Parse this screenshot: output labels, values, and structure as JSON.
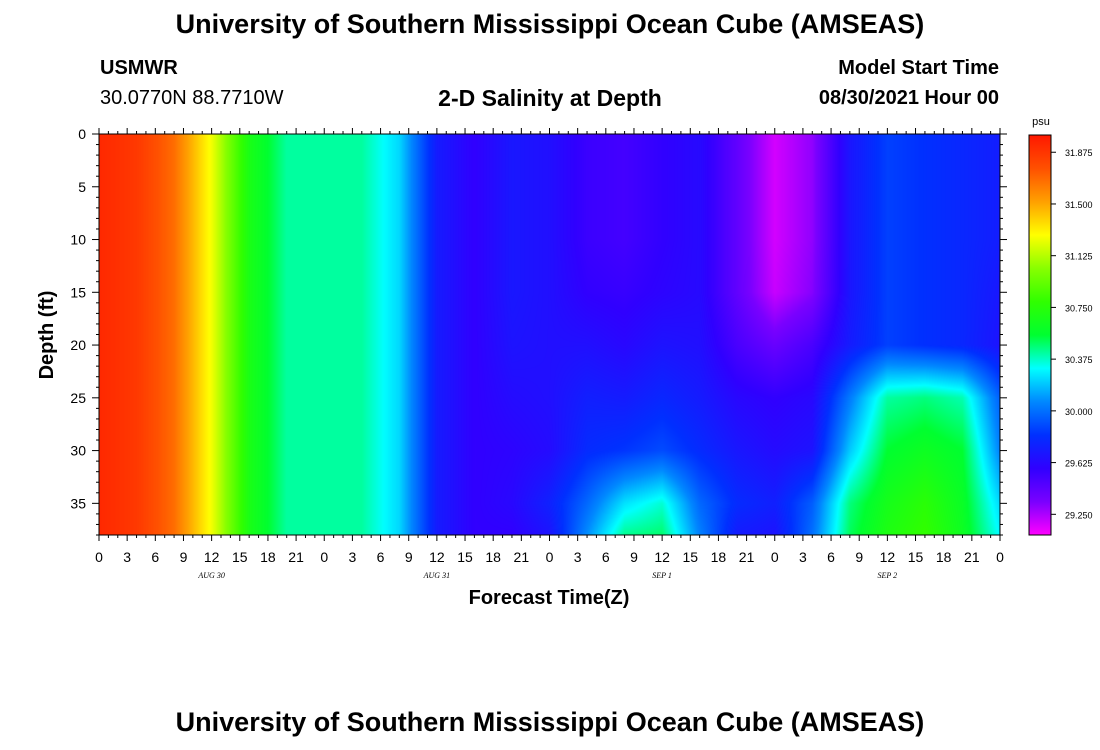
{
  "header": {
    "title": "University of Southern Mississippi Ocean Cube (AMSEAS)",
    "station_name": "USMWR",
    "station_coords": "30.0770N  88.7710W",
    "model_start_label": "Model Start Time",
    "model_start_value": "08/30/2021 Hour 00"
  },
  "footer": {
    "title": "University of Southern Mississippi Ocean Cube (AMSEAS)"
  },
  "chart_data": {
    "type": "heatmap",
    "title": "2-D Salinity at Depth",
    "xlabel": "Forecast Time(Z)",
    "ylabel": "Depth (ft)",
    "colorbar_unit": "psu",
    "colorbar_ticks": [
      "31.875",
      "31.500",
      "31.125",
      "30.750",
      "30.375",
      "30.000",
      "29.625",
      "29.250"
    ],
    "clim": [
      29.1,
      32.0
    ],
    "colormap": [
      "#ff00ff",
      "#7a00ff",
      "#3000ff",
      "#0030ff",
      "#0088ff",
      "#00ffff",
      "#00ff30",
      "#30ff00",
      "#88ff00",
      "#ffff00",
      "#ffa000",
      "#ff5000",
      "#ff1800"
    ],
    "xlim": [
      0,
      96
    ],
    "ylim": [
      38,
      0
    ],
    "x_tick_labels": [
      "0",
      "3",
      "6",
      "9",
      "12",
      "15",
      "18",
      "21",
      "0",
      "3",
      "6",
      "9",
      "12",
      "15",
      "18",
      "21",
      "0",
      "3",
      "6",
      "9",
      "12",
      "15",
      "18",
      "21",
      "0",
      "3",
      "6",
      "9",
      "12",
      "15",
      "18",
      "21",
      "0"
    ],
    "date_labels": [
      {
        "text": "AUG 30",
        "hour": 12
      },
      {
        "text": "AUG 31",
        "hour": 36
      },
      {
        "text": "SEP 1",
        "hour": 60
      },
      {
        "text": "SEP 2",
        "hour": 84
      }
    ],
    "y_ticks": [
      0,
      5,
      10,
      15,
      20,
      25,
      30,
      35
    ],
    "x_hours": [
      0,
      4,
      8,
      12,
      16,
      20,
      24,
      28,
      32,
      36,
      40,
      44,
      48,
      52,
      56,
      60,
      64,
      68,
      72,
      76,
      80,
      84,
      88,
      92,
      96
    ],
    "depths_ft": [
      0,
      5,
      10,
      15,
      20,
      25,
      30,
      35,
      38
    ],
    "salinity_psu": [
      [
        31.93,
        31.86,
        31.67,
        31.25,
        30.68,
        30.42,
        30.42,
        30.42,
        30.23,
        29.72,
        29.58,
        29.7,
        29.66,
        29.55,
        29.52,
        29.58,
        29.63,
        29.42,
        29.18,
        29.3,
        29.69,
        29.87,
        29.82,
        29.78,
        29.73
      ],
      [
        31.93,
        31.86,
        31.67,
        31.25,
        30.68,
        30.42,
        30.42,
        30.42,
        30.23,
        29.72,
        29.58,
        29.7,
        29.66,
        29.55,
        29.52,
        29.58,
        29.63,
        29.42,
        29.18,
        29.3,
        29.69,
        29.87,
        29.82,
        29.78,
        29.73
      ],
      [
        31.93,
        31.86,
        31.67,
        31.25,
        30.68,
        30.42,
        30.42,
        30.42,
        30.23,
        29.72,
        29.58,
        29.7,
        29.66,
        29.55,
        29.52,
        29.58,
        29.63,
        29.42,
        29.18,
        29.3,
        29.69,
        29.87,
        29.82,
        29.78,
        29.73
      ],
      [
        31.93,
        31.86,
        31.67,
        31.25,
        30.68,
        30.42,
        30.42,
        30.42,
        30.23,
        29.72,
        29.58,
        29.7,
        29.66,
        29.58,
        29.56,
        29.6,
        29.63,
        29.42,
        29.2,
        29.32,
        29.69,
        29.87,
        29.82,
        29.78,
        29.7
      ],
      [
        31.93,
        31.86,
        31.67,
        31.25,
        30.68,
        30.42,
        30.42,
        30.42,
        30.23,
        29.72,
        29.58,
        29.68,
        29.66,
        29.66,
        29.62,
        29.68,
        29.66,
        29.5,
        29.4,
        29.5,
        29.72,
        29.87,
        29.82,
        29.78,
        29.68
      ],
      [
        31.93,
        31.86,
        31.67,
        31.25,
        30.68,
        30.42,
        30.42,
        30.42,
        30.23,
        29.72,
        29.58,
        29.64,
        29.66,
        29.74,
        29.72,
        29.78,
        29.72,
        29.62,
        29.58,
        29.62,
        30.03,
        30.42,
        30.46,
        30.4,
        29.96
      ],
      [
        31.93,
        31.86,
        31.67,
        31.25,
        30.68,
        30.42,
        30.42,
        30.42,
        30.23,
        29.72,
        29.58,
        29.6,
        29.64,
        29.8,
        29.84,
        29.9,
        29.8,
        29.7,
        29.64,
        29.68,
        30.2,
        30.55,
        30.62,
        30.55,
        30.05
      ],
      [
        31.93,
        31.86,
        31.67,
        31.25,
        30.68,
        30.42,
        30.42,
        30.42,
        30.23,
        29.72,
        29.58,
        29.62,
        29.75,
        29.98,
        30.25,
        30.36,
        29.98,
        29.8,
        29.74,
        29.95,
        30.46,
        30.66,
        30.76,
        30.6,
        30.23
      ],
      [
        31.93,
        31.86,
        31.67,
        31.25,
        30.68,
        30.42,
        30.42,
        30.42,
        30.23,
        29.72,
        29.58,
        29.58,
        29.68,
        30.08,
        30.44,
        30.48,
        30.05,
        29.72,
        29.68,
        30.0,
        30.5,
        30.7,
        30.8,
        30.62,
        30.3
      ]
    ]
  }
}
